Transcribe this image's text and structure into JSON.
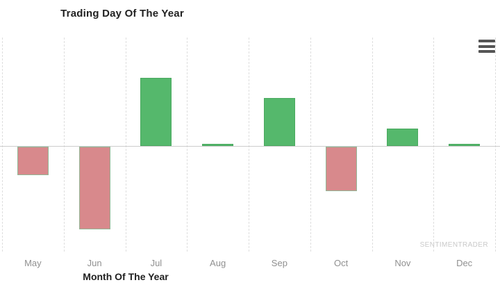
{
  "chart": {
    "title": "Trading Day Of The Year",
    "xlabel": "Month Of The Year",
    "watermark": "SENTIMENTRADER",
    "menu_icon": "hamburger-icon"
  },
  "chart_data": {
    "type": "bar",
    "title": "Trading Day Of The Year",
    "xlabel": "Month Of The Year",
    "ylabel": "",
    "categories": [
      "May",
      "Jun",
      "Jul",
      "Aug",
      "Sep",
      "Oct",
      "Nov",
      "Dec"
    ],
    "values": [
      -0.41,
      -1.19,
      0.98,
      0.03,
      0.69,
      -0.64,
      0.25,
      0.03
    ],
    "ylim": [
      -1.56,
      1.56
    ],
    "y_tick_labels_visible": false,
    "grid": "vertical-dashed",
    "legend": "none",
    "colors": {
      "positive": "#55b86c",
      "positive_border": "#4aa95f",
      "negative": "#d8898c",
      "negative_border": "#92b896",
      "gridline": "#dedede",
      "zero_line": "#cccccc",
      "axis_label": "#909090",
      "title": "#212121",
      "watermark": "#c9c9c9",
      "menu_icon": "#555555"
    }
  }
}
